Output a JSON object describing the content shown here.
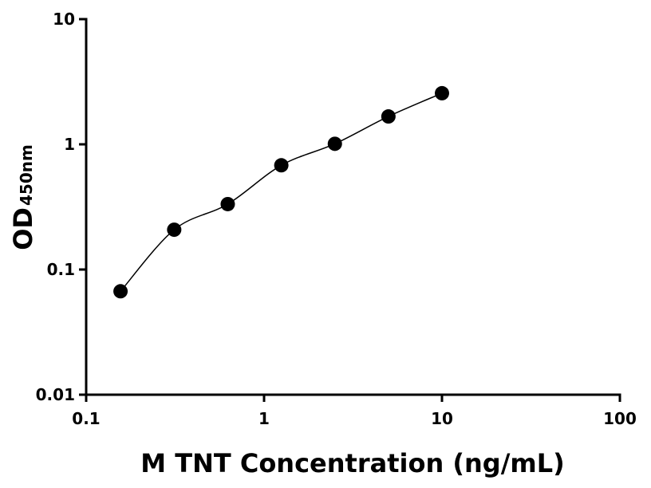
{
  "chart_data": {
    "type": "scatter",
    "x_label": "M TNT Concentration (ng/mL)",
    "y_label": "OD",
    "y_label_subscript": "450nm",
    "x": [
      0.156,
      0.3125,
      0.625,
      1.25,
      2.5,
      5,
      10
    ],
    "values": [
      0.067,
      0.208,
      0.333,
      0.68,
      1.01,
      1.67,
      2.56
    ],
    "color": "#000000",
    "curve": true,
    "xscale": "log",
    "yscale": "log",
    "xlim": [
      0.1,
      100
    ],
    "xticks": [
      0.1,
      1,
      10,
      100
    ],
    "ylim": [
      0.01,
      10
    ],
    "yticks": [
      0.01,
      0.1,
      1,
      10
    ],
    "grid": false
  }
}
